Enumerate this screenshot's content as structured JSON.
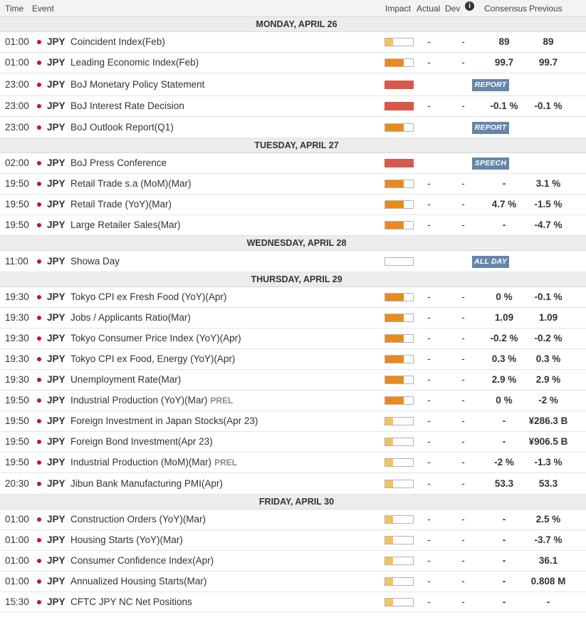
{
  "header": {
    "time": "Time",
    "event": "Event",
    "impact": "Impact",
    "actual": "Actual",
    "dev": "Dev",
    "info_icon": "i",
    "consensus": "Consensus",
    "previous": "Previous"
  },
  "days": [
    {
      "label": "MONDAY, APRIL 26",
      "events": [
        {
          "time": "01:00",
          "currency": "JPY",
          "name": "Coincident Index(Feb)",
          "impact": "low",
          "actual": "-",
          "dev": "-",
          "consensus": "89",
          "previous": "89"
        },
        {
          "time": "01:00",
          "currency": "JPY",
          "name": "Leading Economic Index(Feb)",
          "impact": "med",
          "actual": "-",
          "dev": "-",
          "consensus": "99.7",
          "previous": "99.7"
        },
        {
          "time": "23:00",
          "currency": "JPY",
          "name": "BoJ Monetary Policy Statement",
          "impact": "high",
          "badge": "REPORT"
        },
        {
          "time": "23:00",
          "currency": "JPY",
          "name": "BoJ Interest Rate Decision",
          "impact": "high",
          "actual": "-",
          "dev": "-",
          "consensus": "-0.1 %",
          "previous": "-0.1 %"
        },
        {
          "time": "23:00",
          "currency": "JPY",
          "name": "BoJ Outlook Report(Q1)",
          "impact": "med",
          "badge": "REPORT"
        }
      ]
    },
    {
      "label": "TUESDAY, APRIL 27",
      "events": [
        {
          "time": "02:00",
          "currency": "JPY",
          "name": "BoJ Press Conference",
          "impact": "high",
          "badge": "SPEECH"
        },
        {
          "time": "19:50",
          "currency": "JPY",
          "name": "Retail Trade s.a (MoM)(Mar)",
          "impact": "med",
          "actual": "-",
          "dev": "-",
          "consensus": "-",
          "previous": "3.1 %"
        },
        {
          "time": "19:50",
          "currency": "JPY",
          "name": "Retail Trade (YoY)(Mar)",
          "impact": "med",
          "actual": "-",
          "dev": "-",
          "consensus": "4.7 %",
          "previous": "-1.5 %"
        },
        {
          "time": "19:50",
          "currency": "JPY",
          "name": "Large Retailer Sales(Mar)",
          "impact": "med",
          "actual": "-",
          "dev": "-",
          "consensus": "-",
          "previous": "-4.7 %"
        }
      ]
    },
    {
      "label": "WEDNESDAY, APRIL 28",
      "events": [
        {
          "time": "11:00",
          "currency": "JPY",
          "name": "Showa Day",
          "impact": "none",
          "badge": "ALL DAY"
        }
      ]
    },
    {
      "label": "THURSDAY, APRIL 29",
      "events": [
        {
          "time": "19:30",
          "currency": "JPY",
          "name": "Tokyo CPI ex Fresh Food (YoY)(Apr)",
          "impact": "med",
          "actual": "-",
          "dev": "-",
          "consensus": "0 %",
          "previous": "-0.1 %"
        },
        {
          "time": "19:30",
          "currency": "JPY",
          "name": "Jobs / Applicants Ratio(Mar)",
          "impact": "med",
          "actual": "-",
          "dev": "-",
          "consensus": "1.09",
          "previous": "1.09"
        },
        {
          "time": "19:30",
          "currency": "JPY",
          "name": "Tokyo Consumer Price Index (YoY)(Apr)",
          "impact": "med",
          "actual": "-",
          "dev": "-",
          "consensus": "-0.2 %",
          "previous": "-0.2 %"
        },
        {
          "time": "19:30",
          "currency": "JPY",
          "name": "Tokyo CPI ex Food, Energy (YoY)(Apr)",
          "impact": "med",
          "actual": "-",
          "dev": "-",
          "consensus": "0.3 %",
          "previous": "0.3 %"
        },
        {
          "time": "19:30",
          "currency": "JPY",
          "name": "Unemployment Rate(Mar)",
          "impact": "med",
          "actual": "-",
          "dev": "-",
          "consensus": "2.9 %",
          "previous": "2.9 %"
        },
        {
          "time": "19:50",
          "currency": "JPY",
          "name": "Industrial Production (YoY)(Mar)",
          "prel": "PREL",
          "impact": "med",
          "actual": "-",
          "dev": "-",
          "consensus": "0 %",
          "previous": "-2 %"
        },
        {
          "time": "19:50",
          "currency": "JPY",
          "name": "Foreign Investment in Japan Stocks(Apr 23)",
          "impact": "low",
          "actual": "-",
          "dev": "-",
          "consensus": "-",
          "previous": "¥286.3 B"
        },
        {
          "time": "19:50",
          "currency": "JPY",
          "name": "Foreign Bond Investment(Apr 23)",
          "impact": "low",
          "actual": "-",
          "dev": "-",
          "consensus": "-",
          "previous": "¥906.5 B"
        },
        {
          "time": "19:50",
          "currency": "JPY",
          "name": "Industrial Production (MoM)(Mar)",
          "prel": "PREL",
          "impact": "low",
          "actual": "-",
          "dev": "-",
          "consensus": "-2 %",
          "previous": "-1.3 %"
        },
        {
          "time": "20:30",
          "currency": "JPY",
          "name": "Jibun Bank Manufacturing PMI(Apr)",
          "impact": "low",
          "actual": "-",
          "dev": "-",
          "consensus": "53.3",
          "previous": "53.3"
        }
      ]
    },
    {
      "label": "FRIDAY, APRIL 30",
      "events": [
        {
          "time": "01:00",
          "currency": "JPY",
          "name": "Construction Orders (YoY)(Mar)",
          "impact": "low",
          "actual": "-",
          "dev": "-",
          "consensus": "-",
          "previous": "2.5 %"
        },
        {
          "time": "01:00",
          "currency": "JPY",
          "name": "Housing Starts (YoY)(Mar)",
          "impact": "low",
          "actual": "-",
          "dev": "-",
          "consensus": "-",
          "previous": "-3.7 %"
        },
        {
          "time": "01:00",
          "currency": "JPY",
          "name": "Consumer Confidence Index(Apr)",
          "impact": "low",
          "actual": "-",
          "dev": "-",
          "consensus": "-",
          "previous": "36.1"
        },
        {
          "time": "01:00",
          "currency": "JPY",
          "name": "Annualized Housing Starts(Mar)",
          "impact": "low",
          "actual": "-",
          "dev": "-",
          "consensus": "-",
          "previous": "0.808 M"
        },
        {
          "time": "15:30",
          "currency": "JPY",
          "name": "CFTC JPY NC Net Positions",
          "impact": "low",
          "actual": "-",
          "dev": "-",
          "consensus": "-",
          "previous": "-"
        }
      ]
    }
  ],
  "colors": {
    "impact_low": "#f3c35a",
    "impact_med": "#ea8a1a",
    "impact_high": "#d5584b",
    "badge": "#6486ab",
    "flag": "#c8102e"
  },
  "icons": {
    "flag": "japan-flag-icon",
    "info": "info-icon"
  }
}
